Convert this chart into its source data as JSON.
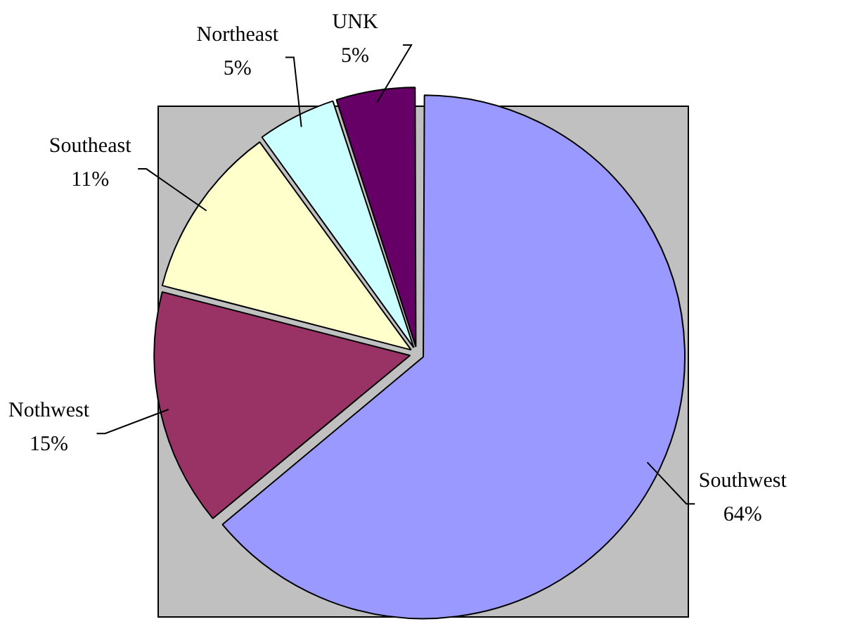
{
  "chart_data": {
    "type": "pie",
    "categories": [
      "Southwest",
      "Nothwest",
      "Southeast",
      "Northeast",
      "UNK"
    ],
    "values": [
      64,
      15,
      11,
      5,
      5
    ],
    "value_labels": [
      "64%",
      "15%",
      "11%",
      "5%",
      "5%"
    ],
    "colors": [
      "#9999ff",
      "#993366",
      "#ffffcc",
      "#ccffff",
      "#660066"
    ],
    "legend": false
  }
}
